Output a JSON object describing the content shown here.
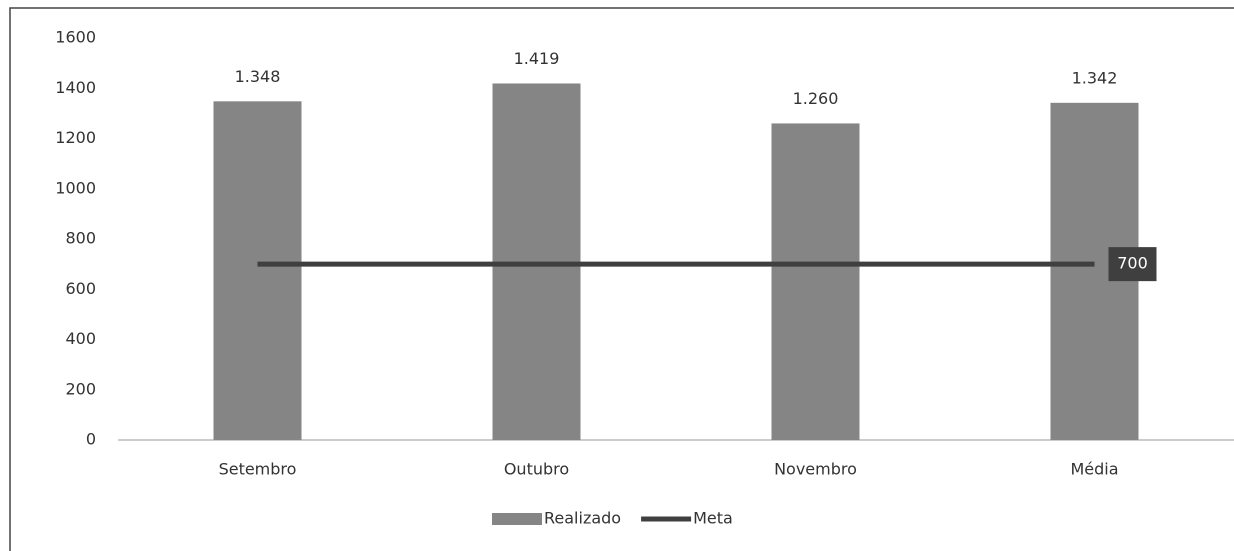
{
  "chart_data": {
    "type": "bar",
    "categories": [
      "Setembro",
      "Outubro",
      "Novembro",
      "Média"
    ],
    "series": [
      {
        "name": "Realizado",
        "type": "bar",
        "color": "#858585",
        "values": [
          1348,
          1419,
          1260,
          1342
        ],
        "value_labels": [
          "1.348",
          "1.419",
          "1.260",
          "1.342"
        ]
      },
      {
        "name": "Meta",
        "type": "line",
        "color": "#3f3f3f",
        "values": [
          700,
          700,
          700,
          700
        ]
      }
    ],
    "ylim": [
      0,
      1600
    ],
    "yticks": [
      0,
      200,
      400,
      600,
      800,
      1000,
      1200,
      1400,
      1600
    ],
    "grid": false,
    "legend": "bottom"
  }
}
